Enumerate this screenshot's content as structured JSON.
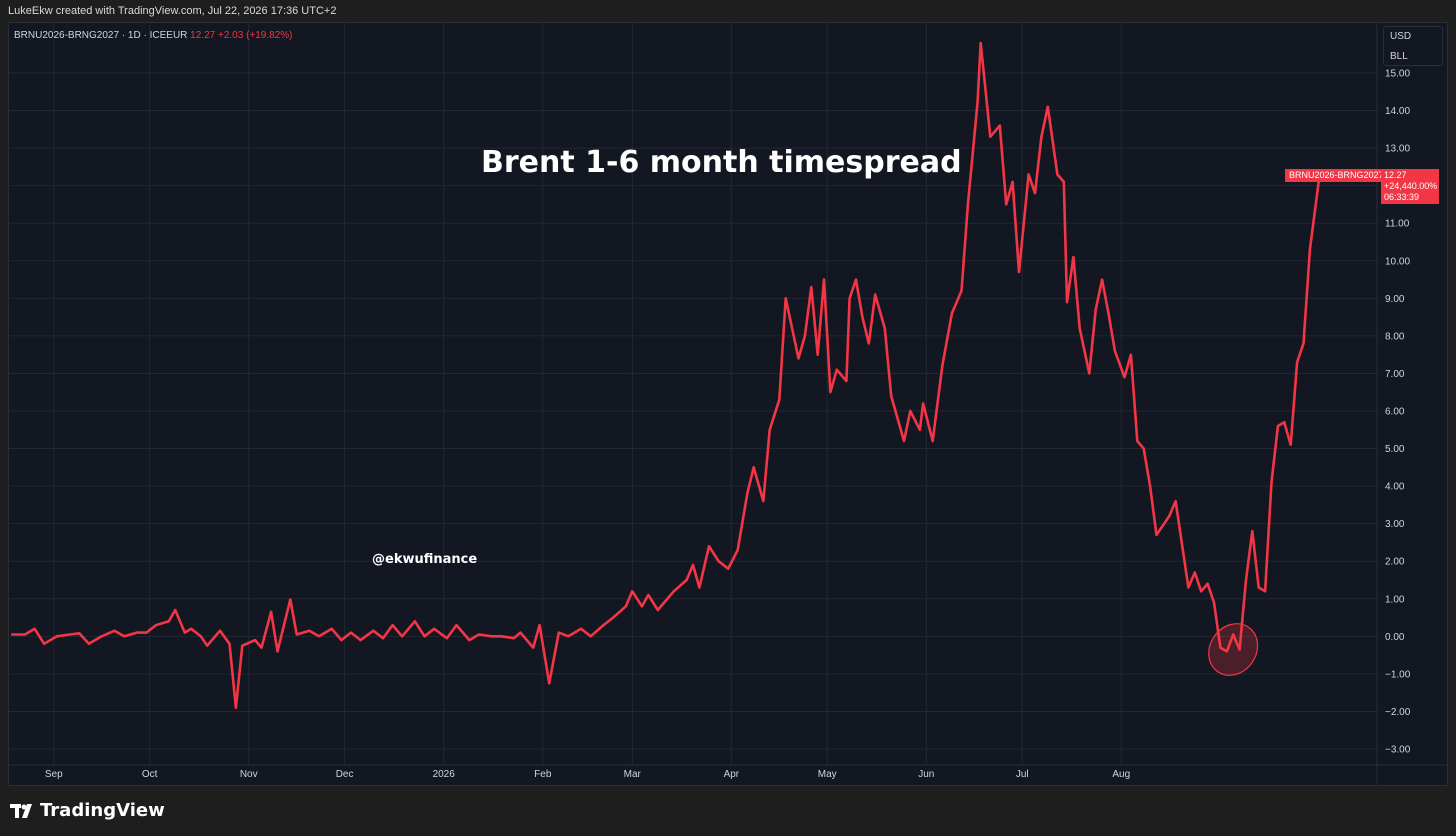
{
  "header": {
    "attribution": "LukeEkw created with TradingView.com, Jul 22, 2026 17:36 UTC+2"
  },
  "symbol_info": {
    "name": "BRNU2026-BRNG2027 · 1D · ICEEUR",
    "last": "12.27",
    "change": "+2.03 (+19.82%)"
  },
  "currency_menu": {
    "currency": "USD",
    "unit": "BLL"
  },
  "price_tag": {
    "symbol": "BRNU2026-BRNG2027",
    "value": "12.27",
    "percent": "+24,440.00%",
    "countdown": "06:33:39"
  },
  "overlay": {
    "title": "Brent 1-6 month timespread",
    "watermark": "@ekwufinance"
  },
  "brand": {
    "name": "TradingView"
  },
  "colors": {
    "background": "#131722",
    "grid": "#232733",
    "line": "#f23645",
    "axis_text": "#d1d4dc"
  },
  "chart_data": {
    "type": "line",
    "title": "Brent 1-6 month timespread",
    "xlabel": "",
    "ylabel": "",
    "ylim": [
      -3,
      15
    ],
    "grid": true,
    "legend": "none",
    "y_ticks": [
      "15.00",
      "14.00",
      "13.00",
      "12.00",
      "11.00",
      "10.00",
      "9.00",
      "8.00",
      "7.00",
      "6.00",
      "5.00",
      "4.00",
      "3.00",
      "2.00",
      "1.00",
      "0.00",
      "−1.00",
      "−2.00",
      "−3.00"
    ],
    "x_ticks": [
      {
        "label": "Sep",
        "date": "2025-09-01"
      },
      {
        "label": "Oct",
        "date": "2025-10-01"
      },
      {
        "label": "Nov",
        "date": "2025-11-01"
      },
      {
        "label": "Dec",
        "date": "2025-12-01"
      },
      {
        "label": "2026",
        "date": "2026-01-01"
      },
      {
        "label": "Feb",
        "date": "2026-02-01"
      },
      {
        "label": "Mar",
        "date": "2026-03-01"
      },
      {
        "label": "Apr",
        "date": "2026-04-01"
      },
      {
        "label": "May",
        "date": "2026-05-01"
      },
      {
        "label": "Jun",
        "date": "2026-06-01"
      },
      {
        "label": "Jul",
        "date": "2026-07-01"
      },
      {
        "label": "Aug",
        "date": "2026-08-01"
      }
    ],
    "series": [
      {
        "points": [
          [
            "2025-08-19",
            0.05
          ],
          [
            "2025-08-23",
            0.05
          ],
          [
            "2025-08-26",
            0.2
          ],
          [
            "2025-08-29",
            -0.2
          ],
          [
            "2025-09-02",
            0.0
          ],
          [
            "2025-09-06",
            0.05
          ],
          [
            "2025-09-09",
            0.08
          ],
          [
            "2025-09-12",
            -0.2
          ],
          [
            "2025-09-16",
            0.0
          ],
          [
            "2025-09-20",
            0.15
          ],
          [
            "2025-09-23",
            0.0
          ],
          [
            "2025-09-27",
            0.1
          ],
          [
            "2025-09-30",
            0.1
          ],
          [
            "2025-10-03",
            0.3
          ],
          [
            "2025-10-07",
            0.4
          ],
          [
            "2025-10-09",
            0.7
          ],
          [
            "2025-10-12",
            0.1
          ],
          [
            "2025-10-14",
            0.2
          ],
          [
            "2025-10-17",
            0.0
          ],
          [
            "2025-10-19",
            -0.25
          ],
          [
            "2025-10-23",
            0.15
          ],
          [
            "2025-10-26",
            -0.2
          ],
          [
            "2025-10-28",
            -1.9
          ],
          [
            "2025-10-30",
            -0.25
          ],
          [
            "2025-11-03",
            -0.1
          ],
          [
            "2025-11-05",
            -0.3
          ],
          [
            "2025-11-08",
            0.65
          ],
          [
            "2025-11-10",
            -0.4
          ],
          [
            "2025-11-14",
            0.98
          ],
          [
            "2025-11-16",
            0.05
          ],
          [
            "2025-11-20",
            0.15
          ],
          [
            "2025-11-23",
            0.0
          ],
          [
            "2025-11-27",
            0.2
          ],
          [
            "2025-11-30",
            -0.1
          ],
          [
            "2025-12-03",
            0.1
          ],
          [
            "2025-12-06",
            -0.1
          ],
          [
            "2025-12-10",
            0.15
          ],
          [
            "2025-12-13",
            -0.05
          ],
          [
            "2025-12-16",
            0.3
          ],
          [
            "2025-12-19",
            0.0
          ],
          [
            "2025-12-23",
            0.4
          ],
          [
            "2025-12-26",
            0.0
          ],
          [
            "2025-12-29",
            0.2
          ],
          [
            "2026-01-02",
            -0.05
          ],
          [
            "2026-01-05",
            0.3
          ],
          [
            "2026-01-09",
            -0.1
          ],
          [
            "2026-01-12",
            0.05
          ],
          [
            "2026-01-16",
            0.0
          ],
          [
            "2026-01-19",
            0.0
          ],
          [
            "2026-01-23",
            -0.05
          ],
          [
            "2026-01-25",
            0.1
          ],
          [
            "2026-01-29",
            -0.3
          ],
          [
            "2026-01-31",
            0.3
          ],
          [
            "2026-02-03",
            -1.25
          ],
          [
            "2026-02-06",
            0.1
          ],
          [
            "2026-02-09",
            0.0
          ],
          [
            "2026-02-13",
            0.2
          ],
          [
            "2026-02-16",
            0.0
          ],
          [
            "2026-02-20",
            0.3
          ],
          [
            "2026-02-23",
            0.5
          ],
          [
            "2026-02-27",
            0.8
          ],
          [
            "2026-03-01",
            1.2
          ],
          [
            "2026-03-04",
            0.8
          ],
          [
            "2026-03-06",
            1.1
          ],
          [
            "2026-03-09",
            0.7
          ],
          [
            "2026-03-11",
            0.9
          ],
          [
            "2026-03-14",
            1.2
          ],
          [
            "2026-03-18",
            1.5
          ],
          [
            "2026-03-20",
            1.9
          ],
          [
            "2026-03-22",
            1.3
          ],
          [
            "2026-03-25",
            2.4
          ],
          [
            "2026-03-28",
            2.0
          ],
          [
            "2026-03-31",
            1.8
          ],
          [
            "2026-04-03",
            2.3
          ],
          [
            "2026-04-06",
            3.8
          ],
          [
            "2026-04-08",
            4.5
          ],
          [
            "2026-04-11",
            3.6
          ],
          [
            "2026-04-13",
            5.5
          ],
          [
            "2026-04-16",
            6.3
          ],
          [
            "2026-04-18",
            9.0
          ],
          [
            "2026-04-22",
            7.4
          ],
          [
            "2026-04-24",
            8.0
          ],
          [
            "2026-04-26",
            9.3
          ],
          [
            "2026-04-28",
            7.5
          ],
          [
            "2026-04-30",
            9.5
          ],
          [
            "2026-05-02",
            6.5
          ],
          [
            "2026-05-04",
            7.1
          ],
          [
            "2026-05-07",
            6.8
          ],
          [
            "2026-05-08",
            9.0
          ],
          [
            "2026-05-10",
            9.5
          ],
          [
            "2026-05-12",
            8.5
          ],
          [
            "2026-05-14",
            7.8
          ],
          [
            "2026-05-16",
            9.1
          ],
          [
            "2026-05-19",
            8.2
          ],
          [
            "2026-05-21",
            6.4
          ],
          [
            "2026-05-25",
            5.2
          ],
          [
            "2026-05-27",
            6.0
          ],
          [
            "2026-05-30",
            5.5
          ],
          [
            "2026-05-31",
            6.2
          ],
          [
            "2026-06-03",
            5.2
          ],
          [
            "2026-06-06",
            7.2
          ],
          [
            "2026-06-09",
            8.6
          ],
          [
            "2026-06-12",
            9.2
          ],
          [
            "2026-06-14",
            11.5
          ],
          [
            "2026-06-17",
            14.2
          ],
          [
            "2026-06-18",
            15.8
          ],
          [
            "2026-06-21",
            13.3
          ],
          [
            "2026-06-24",
            13.6
          ],
          [
            "2026-06-26",
            11.5
          ],
          [
            "2026-06-28",
            12.1
          ],
          [
            "2026-06-30",
            9.7
          ],
          [
            "2026-07-03",
            12.3
          ],
          [
            "2026-07-05",
            11.8
          ],
          [
            "2026-07-07",
            13.3
          ],
          [
            "2026-07-09",
            14.1
          ],
          [
            "2026-07-12",
            12.3
          ],
          [
            "2026-07-14",
            12.1
          ],
          [
            "2026-07-15",
            8.9
          ],
          [
            "2026-07-17",
            10.1
          ],
          [
            "2026-07-19",
            8.2
          ],
          [
            "2026-07-22",
            7.0
          ],
          [
            "2026-07-24",
            8.7
          ],
          [
            "2026-07-26",
            9.5
          ],
          [
            "2026-07-28",
            8.6
          ],
          [
            "2026-07-30",
            7.6
          ],
          [
            "2026-08-02",
            6.9
          ],
          [
            "2026-08-04",
            7.5
          ],
          [
            "2026-08-06",
            5.2
          ],
          [
            "2026-08-08",
            5.0
          ],
          [
            "2026-08-10",
            4.0
          ],
          [
            "2026-08-12",
            2.7
          ],
          [
            "2026-08-16",
            3.2
          ],
          [
            "2026-08-18",
            3.6
          ],
          [
            "2026-08-22",
            1.3
          ],
          [
            "2026-08-24",
            1.7
          ],
          [
            "2026-08-26",
            1.2
          ],
          [
            "2026-08-28",
            1.4
          ],
          [
            "2026-08-30",
            0.9
          ],
          [
            "2026-09-01",
            -0.3
          ],
          [
            "2026-09-03",
            -0.4
          ],
          [
            "2026-09-05",
            0.05
          ],
          [
            "2026-09-07",
            -0.35
          ],
          [
            "2026-09-09",
            1.5
          ],
          [
            "2026-09-11",
            2.8
          ],
          [
            "2026-09-13",
            1.3
          ],
          [
            "2026-09-15",
            1.2
          ],
          [
            "2026-09-17",
            4.1
          ],
          [
            "2026-09-19",
            5.6
          ],
          [
            "2026-09-21",
            5.7
          ],
          [
            "2026-09-23",
            5.1
          ],
          [
            "2026-09-25",
            7.3
          ],
          [
            "2026-09-27",
            7.8
          ],
          [
            "2026-09-29",
            10.3
          ],
          [
            "2026-10-02",
            12.27
          ]
        ]
      }
    ],
    "annotations": [
      {
        "type": "ellipse",
        "center": [
          "2026-09-05",
          -0.35
        ],
        "note": ""
      }
    ]
  }
}
